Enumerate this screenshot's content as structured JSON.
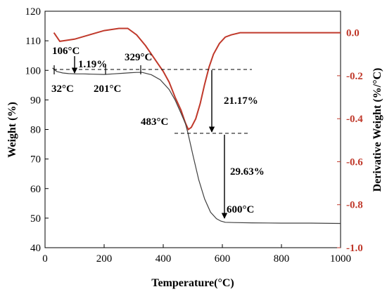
{
  "chart_data": {
    "type": "line",
    "xlabel": "Temperature(°C)",
    "ylabel": "Weight (%)",
    "y2label": "Derivative Weight (%/°C)",
    "xlim": [
      0,
      1000
    ],
    "ylim": [
      40,
      120
    ],
    "y2lim": [
      -1.0,
      0.1
    ],
    "x_ticks": [
      "0",
      "200",
      "400",
      "600",
      "800",
      "1000"
    ],
    "y_ticks": [
      "40",
      "50",
      "60",
      "70",
      "80",
      "90",
      "100",
      "110",
      "120"
    ],
    "y2_ticks": [
      "-1.0",
      "-0.8",
      "-0.6",
      "-0.4",
      "-0.2",
      "0.0"
    ],
    "grid": false,
    "colors": {
      "weight": "#404040",
      "derivative": "#c0392b",
      "right_axis": "#c0392b"
    },
    "series": [
      {
        "axis": "left",
        "x": [
          25,
          40,
          60,
          80,
          106,
          130,
          160,
          201,
          230,
          260,
          290,
          310,
          329,
          360,
          390,
          420,
          440,
          460,
          475,
          483,
          500,
          520,
          540,
          560,
          580,
          595,
          610,
          640,
          700,
          800,
          900,
          1000
        ],
        "y": [
          100.8,
          99.6,
          99.1,
          98.9,
          98.8,
          98.8,
          98.7,
          98.6,
          98.8,
          99.0,
          99.2,
          99.3,
          99.3,
          98.5,
          96.8,
          93.5,
          90.0,
          85.5,
          82.0,
          79.0,
          71.5,
          63.0,
          56.5,
          52.0,
          49.8,
          49.0,
          48.6,
          48.5,
          48.4,
          48.3,
          48.3,
          48.2
        ]
      },
      {
        "axis": "right",
        "x": [
          30,
          50,
          100,
          150,
          200,
          250,
          280,
          310,
          340,
          370,
          400,
          420,
          440,
          460,
          475,
          485,
          495,
          510,
          525,
          540,
          555,
          570,
          590,
          610,
          630,
          660,
          700,
          800,
          900,
          1000
        ],
        "y": [
          0.0,
          -0.04,
          -0.03,
          -0.01,
          0.01,
          0.02,
          0.02,
          -0.01,
          -0.06,
          -0.12,
          -0.18,
          -0.23,
          -0.3,
          -0.36,
          -0.42,
          -0.45,
          -0.44,
          -0.4,
          -0.33,
          -0.24,
          -0.16,
          -0.1,
          -0.05,
          -0.02,
          -0.01,
          0.0,
          0.0,
          0.0,
          0.0,
          0.0
        ]
      }
    ],
    "annotations": {
      "t_start": "32°C",
      "t_106": "106°C",
      "loss_1": "1.19%",
      "t_201": "201°C",
      "t_329": "329°C",
      "t_483": "483°C",
      "loss_2": "21.17%",
      "loss_3": "29.63%",
      "t_600": "600°C"
    }
  }
}
